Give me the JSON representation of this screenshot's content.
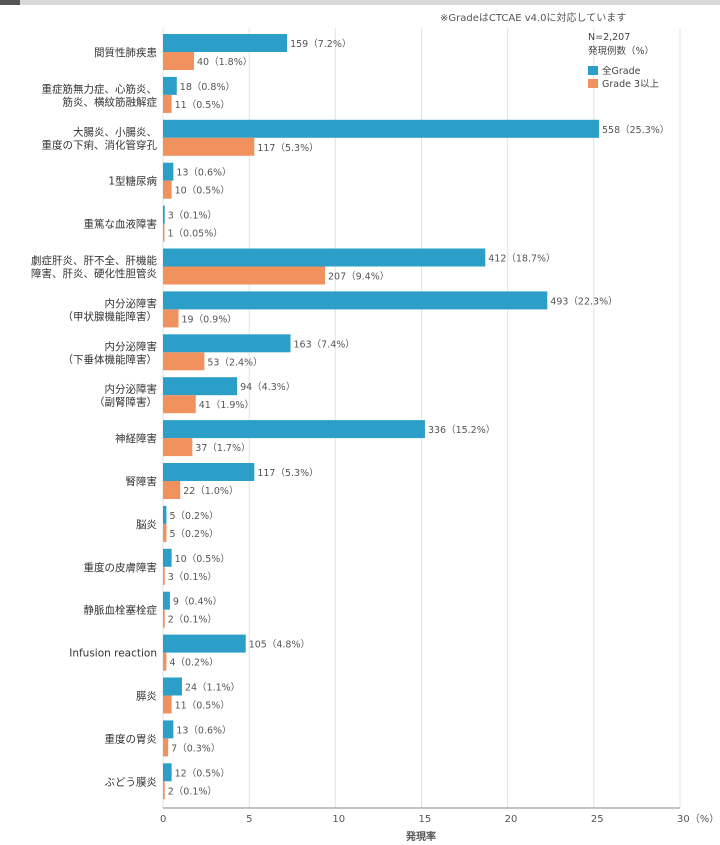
{
  "note": "※GradeはCTCAE v4.0に対応しています",
  "legend": {
    "n_label": "N=2,207",
    "subtitle": "発現例数（%）",
    "items": [
      {
        "label": "全Grade",
        "color": "#2b9fc7"
      },
      {
        "label": "Grade 3以上",
        "color": "#f0915e"
      }
    ]
  },
  "chart_data": {
    "type": "bar",
    "orientation": "horizontal",
    "xlabel": "発現率",
    "xlim": [
      0,
      30
    ],
    "xticks": [
      "0",
      "5",
      "10",
      "15",
      "20",
      "25",
      "30（%）"
    ],
    "grid": true,
    "legend_position": "top-right",
    "categories": [
      [
        "間質性肺疾患"
      ],
      [
        "重症筋無力症、心筋炎、",
        "筋炎、横紋筋融解症"
      ],
      [
        "大腸炎、小腸炎、",
        "重度の下痢、消化管穿孔"
      ],
      [
        "1型糖尿病"
      ],
      [
        "重篤な血液障害"
      ],
      [
        "劇症肝炎、肝不全、肝機能",
        "障害、肝炎、硬化性胆管炎"
      ],
      [
        "内分泌障害",
        "（甲状腺機能障害）"
      ],
      [
        "内分泌障害",
        "（下垂体機能障害）"
      ],
      [
        "内分泌障害",
        "（副腎障害）"
      ],
      [
        "神経障害"
      ],
      [
        "腎障害"
      ],
      [
        "脳炎"
      ],
      [
        "重度の皮膚障害"
      ],
      [
        "静脈血栓塞栓症"
      ],
      [
        "Infusion reaction"
      ],
      [
        "膵炎"
      ],
      [
        "重度の胃炎"
      ],
      [
        "ぶどう膜炎"
      ]
    ],
    "series": [
      {
        "name": "全Grade",
        "color": "#2b9fc7",
        "values": [
          7.2,
          0.8,
          25.3,
          0.6,
          0.1,
          18.7,
          22.3,
          7.4,
          4.3,
          15.2,
          5.3,
          0.2,
          0.5,
          0.4,
          4.8,
          1.1,
          0.6,
          0.5
        ],
        "labels": [
          "159（7.2%）",
          "18（0.8%）",
          "558（25.3%）",
          "13（0.6%）",
          "3（0.1%）",
          "412（18.7%）",
          "493（22.3%）",
          "163（7.4%）",
          "94（4.3%）",
          "336（15.2%）",
          "117（5.3%）",
          "5（0.2%）",
          "10（0.5%）",
          "9（0.4%）",
          "105（4.8%）",
          "24（1.1%）",
          "13（0.6%）",
          "12（0.5%）"
        ]
      },
      {
        "name": "Grade 3以上",
        "color": "#f0915e",
        "values": [
          1.8,
          0.5,
          5.3,
          0.5,
          0.05,
          9.4,
          0.9,
          2.4,
          1.9,
          1.7,
          1.0,
          0.2,
          0.1,
          0.1,
          0.2,
          0.5,
          0.3,
          0.1
        ],
        "labels": [
          "40（1.8%）",
          "11（0.5%）",
          "117（5.3%）",
          "10（0.5%）",
          "1（0.05%）",
          "207（9.4%）",
          "19（0.9%）",
          "53（2.4%）",
          "41（1.9%）",
          "37（1.7%）",
          "22（1.0%）",
          "5（0.2%）",
          "3（0.1%）",
          "2（0.1%）",
          "4（0.2%）",
          "11（0.5%）",
          "7（0.3%）",
          "2（0.1%）"
        ]
      }
    ]
  }
}
